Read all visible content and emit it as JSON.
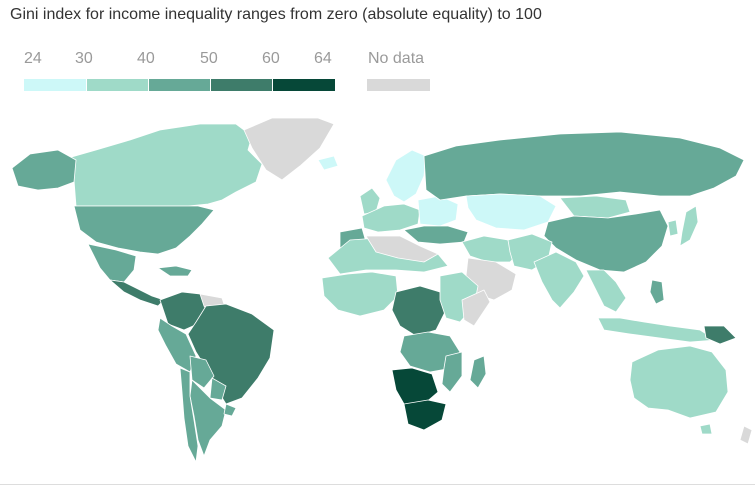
{
  "title": "Gini index for income inequality ranges from zero (absolute equality) to 100",
  "legend": {
    "ticks": [
      "24",
      "30",
      "40",
      "50",
      "60",
      "64"
    ],
    "no_data_label": "No data",
    "bins": [
      {
        "from": 24,
        "to": 30,
        "color": "#cdf8f8"
      },
      {
        "from": 30,
        "to": 40,
        "color": "#9fdac8"
      },
      {
        "from": 40,
        "to": 50,
        "color": "#66a997"
      },
      {
        "from": 50,
        "to": 60,
        "color": "#3e7c6a"
      },
      {
        "from": 60,
        "to": 64,
        "color": "#064838"
      }
    ],
    "no_data_color": "#d9d9d9"
  }
}
